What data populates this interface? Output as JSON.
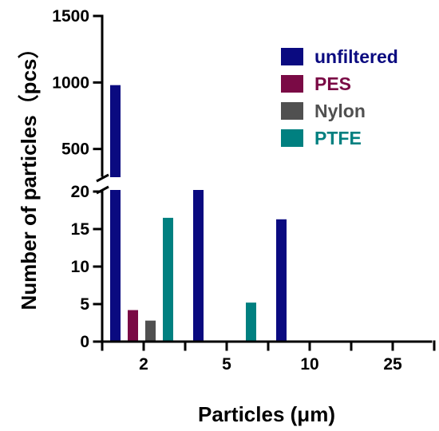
{
  "chart_data": {
    "type": "bar",
    "title": "",
    "xlabel": "Particles (μm)",
    "ylabel": "Number of particles（pcs）",
    "categories": [
      "2",
      "5",
      "10",
      "25"
    ],
    "series": [
      {
        "name": "unfiltered",
        "color": "#0a0a80",
        "values": [
          980,
          200,
          16.3,
          0
        ]
      },
      {
        "name": "PES",
        "color": "#7a0a45",
        "values": [
          4.2,
          0,
          0,
          0
        ]
      },
      {
        "name": "Nylon",
        "color": "#505050",
        "values": [
          2.8,
          0,
          0,
          0
        ]
      },
      {
        "name": "PTFE",
        "color": "#008080",
        "values": [
          16.5,
          5.2,
          0,
          0
        ]
      }
    ],
    "y_axis_broken": true,
    "y_lower_range": [
      0,
      20
    ],
    "y_upper_range": [
      300,
      1500
    ],
    "y_lower_ticks": [
      0,
      5,
      10,
      15,
      20
    ],
    "y_upper_ticks": [
      500,
      1000,
      1500
    ],
    "legend_position": "top-right",
    "grid": false
  }
}
